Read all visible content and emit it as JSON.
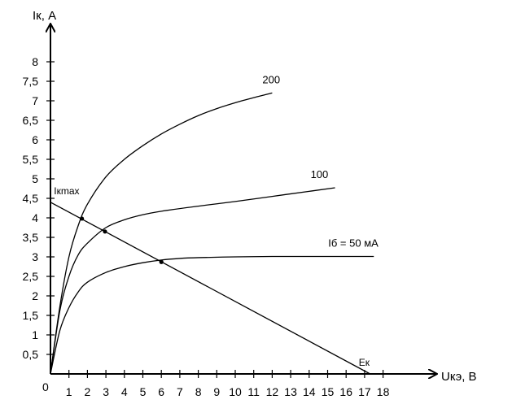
{
  "chart_data": {
    "type": "line",
    "title": "",
    "xlabel": "Uкэ, В",
    "ylabel": "Iк, А",
    "xlim": [
      0,
      18
    ],
    "ylim": [
      0,
      8
    ],
    "x_ticks": [
      0,
      1,
      2,
      3,
      4,
      5,
      6,
      7,
      8,
      9,
      10,
      11,
      12,
      13,
      14,
      15,
      16,
      17,
      18
    ],
    "y_ticks": [
      0.5,
      1,
      1.5,
      2,
      2.5,
      3,
      3.5,
      4,
      4.5,
      5,
      5.5,
      6,
      6.5,
      7,
      7.5,
      8
    ],
    "y_tick_labels": [
      "0,5",
      "1",
      "1,5",
      "2",
      "2,5",
      "3",
      "3,5",
      "4",
      "4,5",
      "5",
      "5,5",
      "6",
      "6,5",
      "7",
      "7,5",
      "8"
    ],
    "origin_label": "0",
    "grid": false,
    "series": [
      {
        "name": "Iб = 50 мА",
        "x": [
          0,
          0.5,
          1,
          1.5,
          2,
          3,
          4,
          5,
          6,
          7,
          8,
          10,
          12,
          14,
          16,
          17.5
        ],
        "y": [
          0,
          1.1,
          1.7,
          2.1,
          2.35,
          2.6,
          2.75,
          2.85,
          2.92,
          2.96,
          2.98,
          3.0,
          3.01,
          3.01,
          3.01,
          3.01
        ]
      },
      {
        "name": "100",
        "x": [
          0,
          0.5,
          1,
          1.5,
          2,
          3,
          4,
          5,
          6,
          8,
          10,
          12,
          14,
          15.4
        ],
        "y": [
          0,
          1.6,
          2.5,
          3.05,
          3.35,
          3.75,
          3.95,
          4.08,
          4.17,
          4.3,
          4.42,
          4.55,
          4.68,
          4.77
        ]
      },
      {
        "name": "200",
        "x": [
          0,
          0.5,
          1,
          1.5,
          2,
          3,
          4,
          5,
          6,
          7,
          8,
          9,
          10,
          11,
          12
        ],
        "y": [
          0,
          1.7,
          3.0,
          3.8,
          4.35,
          5.05,
          5.5,
          5.85,
          6.15,
          6.4,
          6.62,
          6.8,
          6.95,
          7.08,
          7.2
        ]
      }
    ],
    "load_line": {
      "x": [
        0,
        17.3
      ],
      "y": [
        4.4,
        0
      ]
    },
    "operating_points": [
      {
        "x": 1.7,
        "y": 3.98
      },
      {
        "x": 2.95,
        "y": 3.65
      },
      {
        "x": 6.0,
        "y": 2.87
      }
    ],
    "annotations": [
      {
        "text": "Iкmax",
        "x": 0.1,
        "y": 4.4
      },
      {
        "text": "Eк",
        "x": 17.3,
        "y": 0
      }
    ]
  }
}
